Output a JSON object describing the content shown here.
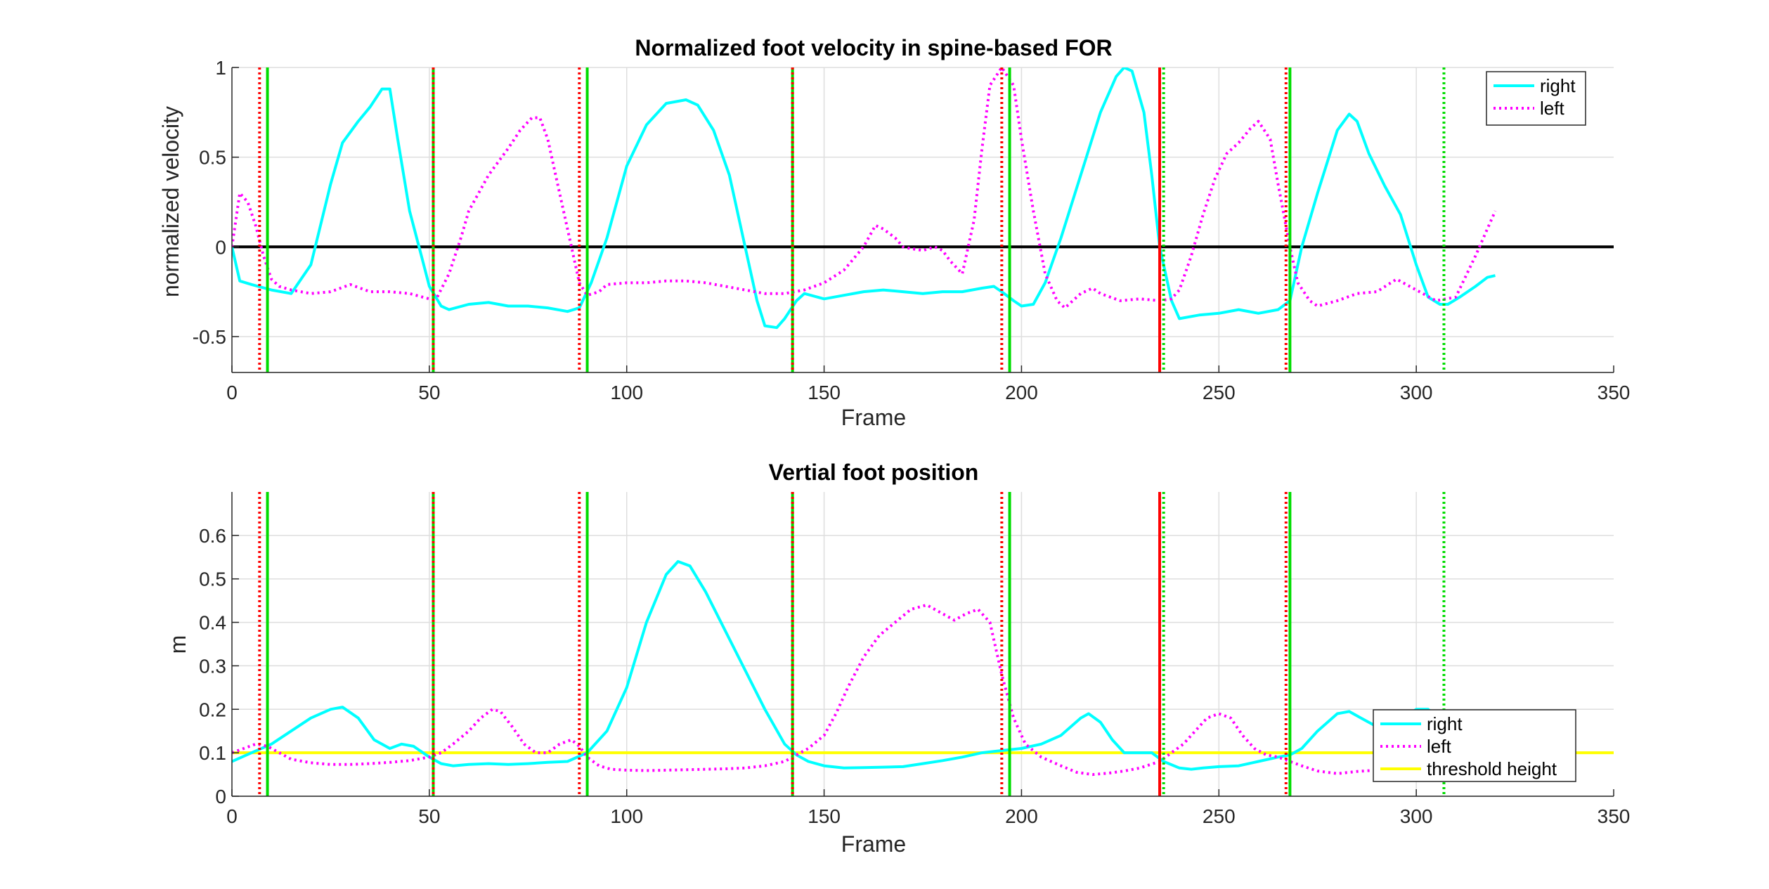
{
  "colors": {
    "right": "#00ffff",
    "left": "#ff00ff",
    "threshold": "#ffff00",
    "zero_line": "#000000",
    "green_event": "#00dd00",
    "red_event": "#ff0000"
  },
  "chart_data": [
    {
      "type": "line",
      "title": "Normalized foot velocity in spine-based FOR",
      "xlabel": "Frame",
      "ylabel": "normalized velocity",
      "xlim": [
        0,
        350
      ],
      "ylim": [
        -0.7,
        1
      ],
      "xticks": [
        0,
        50,
        100,
        150,
        200,
        250,
        300,
        350
      ],
      "yticks": [
        -0.5,
        0,
        0.5,
        1
      ],
      "ytick_labels": [
        "-0.5",
        "0",
        "0.5",
        "1"
      ],
      "grid": true,
      "legend": "top-right",
      "zero_line": 0,
      "series": [
        {
          "name": "right",
          "style": "solid",
          "x": [
            0,
            2,
            5,
            10,
            15,
            20,
            25,
            28,
            32,
            35,
            38,
            40,
            42,
            45,
            48,
            50,
            53,
            55,
            60,
            65,
            70,
            75,
            80,
            85,
            88,
            91,
            95,
            100,
            105,
            110,
            115,
            118,
            122,
            126,
            130,
            133,
            135,
            138,
            140,
            143,
            145,
            150,
            155,
            160,
            165,
            170,
            175,
            180,
            185,
            190,
            193,
            195,
            198,
            200,
            203,
            206,
            210,
            215,
            220,
            224,
            226,
            228,
            231,
            233,
            235,
            238,
            240,
            245,
            250,
            255,
            260,
            265,
            268,
            271,
            275,
            280,
            283,
            285,
            288,
            292,
            296,
            300,
            303,
            306,
            308,
            311,
            315,
            318,
            320
          ],
          "y": [
            0,
            -0.19,
            -0.21,
            -0.24,
            -0.26,
            -0.1,
            0.35,
            0.58,
            0.7,
            0.78,
            0.88,
            0.88,
            0.6,
            0.2,
            -0.05,
            -0.22,
            -0.33,
            -0.35,
            -0.32,
            -0.31,
            -0.33,
            -0.33,
            -0.34,
            -0.36,
            -0.34,
            -0.2,
            0.05,
            0.45,
            0.68,
            0.8,
            0.82,
            0.79,
            0.65,
            0.4,
            0.0,
            -0.3,
            -0.44,
            -0.45,
            -0.4,
            -0.3,
            -0.26,
            -0.29,
            -0.27,
            -0.25,
            -0.24,
            -0.25,
            -0.26,
            -0.25,
            -0.25,
            -0.23,
            -0.22,
            -0.25,
            -0.3,
            -0.33,
            -0.32,
            -0.2,
            0.05,
            0.4,
            0.75,
            0.95,
            1.0,
            0.98,
            0.75,
            0.4,
            0.0,
            -0.3,
            -0.4,
            -0.38,
            -0.37,
            -0.35,
            -0.37,
            -0.35,
            -0.3,
            0.0,
            0.3,
            0.65,
            0.74,
            0.7,
            0.52,
            0.34,
            0.18,
            -0.1,
            -0.28,
            -0.32,
            -0.32,
            -0.28,
            -0.22,
            -0.17,
            -0.16
          ]
        },
        {
          "name": "left",
          "style": "dotted",
          "x": [
            0,
            2,
            4,
            6,
            8,
            10,
            12,
            15,
            20,
            25,
            30,
            35,
            40,
            45,
            50,
            52,
            55,
            58,
            60,
            65,
            70,
            73,
            76,
            78,
            80,
            83,
            86,
            88,
            90,
            93,
            95,
            100,
            105,
            110,
            115,
            120,
            125,
            130,
            135,
            140,
            145,
            150,
            155,
            160,
            163,
            165,
            168,
            170,
            172,
            175,
            178,
            180,
            182,
            185,
            188,
            190,
            192,
            195,
            198,
            200,
            203,
            206,
            209,
            211,
            213,
            215,
            218,
            220,
            225,
            230,
            235,
            238,
            240,
            243,
            246,
            249,
            252,
            255,
            258,
            260,
            263,
            265,
            268,
            270,
            273,
            275,
            280,
            285,
            290,
            295,
            300,
            305,
            310,
            315,
            320
          ],
          "y": [
            0,
            0.3,
            0.25,
            0.12,
            -0.05,
            -0.18,
            -0.22,
            -0.24,
            -0.26,
            -0.25,
            -0.21,
            -0.25,
            -0.25,
            -0.26,
            -0.29,
            -0.28,
            -0.15,
            0.05,
            0.2,
            0.4,
            0.55,
            0.65,
            0.72,
            0.72,
            0.6,
            0.3,
            0.0,
            -0.2,
            -0.27,
            -0.25,
            -0.21,
            -0.2,
            -0.2,
            -0.19,
            -0.19,
            -0.2,
            -0.22,
            -0.24,
            -0.26,
            -0.26,
            -0.24,
            -0.2,
            -0.13,
            0.0,
            0.12,
            0.1,
            0.05,
            0.0,
            -0.01,
            -0.02,
            0.0,
            -0.02,
            -0.08,
            -0.15,
            0.15,
            0.55,
            0.9,
            1.0,
            0.9,
            0.6,
            0.2,
            -0.15,
            -0.3,
            -0.34,
            -0.3,
            -0.26,
            -0.23,
            -0.26,
            -0.3,
            -0.29,
            -0.3,
            -0.29,
            -0.24,
            -0.05,
            0.18,
            0.38,
            0.52,
            0.58,
            0.66,
            0.7,
            0.6,
            0.35,
            0.0,
            -0.2,
            -0.3,
            -0.33,
            -0.3,
            -0.26,
            -0.25,
            -0.18,
            -0.24,
            -0.3,
            -0.28,
            -0.05,
            0.2
          ]
        }
      ]
    },
    {
      "type": "line",
      "title": "Vertial foot position",
      "xlabel": "Frame",
      "ylabel": "m",
      "xlim": [
        0,
        350
      ],
      "ylim": [
        0,
        0.7
      ],
      "xticks": [
        0,
        50,
        100,
        150,
        200,
        250,
        300,
        350
      ],
      "yticks": [
        0,
        0.1,
        0.2,
        0.3,
        0.4,
        0.5,
        0.6
      ],
      "ytick_labels": [
        "0",
        "0.1",
        "0.2",
        "0.3",
        "0.4",
        "0.5",
        "0.6"
      ],
      "grid": true,
      "legend": "bottom-right",
      "series": [
        {
          "name": "right",
          "style": "solid",
          "x": [
            0,
            5,
            10,
            15,
            20,
            25,
            28,
            32,
            36,
            40,
            43,
            46,
            50,
            53,
            56,
            60,
            65,
            70,
            75,
            80,
            85,
            90,
            95,
            100,
            105,
            110,
            113,
            116,
            120,
            125,
            130,
            135,
            140,
            143,
            146,
            150,
            155,
            160,
            165,
            170,
            175,
            180,
            185,
            190,
            195,
            200,
            205,
            210,
            215,
            217,
            220,
            223,
            226,
            230,
            233,
            236,
            240,
            243,
            246,
            250,
            255,
            260,
            265,
            268,
            271,
            275,
            280,
            283,
            286,
            290,
            295,
            300,
            303,
            306,
            310,
            315,
            320
          ],
          "y": [
            0.08,
            0.1,
            0.12,
            0.15,
            0.18,
            0.2,
            0.205,
            0.18,
            0.13,
            0.11,
            0.12,
            0.115,
            0.09,
            0.075,
            0.07,
            0.073,
            0.075,
            0.073,
            0.075,
            0.078,
            0.08,
            0.1,
            0.15,
            0.25,
            0.4,
            0.51,
            0.54,
            0.53,
            0.47,
            0.38,
            0.29,
            0.2,
            0.12,
            0.095,
            0.08,
            0.07,
            0.065,
            0.066,
            0.067,
            0.068,
            0.075,
            0.082,
            0.09,
            0.1,
            0.105,
            0.11,
            0.12,
            0.14,
            0.18,
            0.19,
            0.17,
            0.13,
            0.1,
            0.1,
            0.1,
            0.08,
            0.065,
            0.062,
            0.065,
            0.068,
            0.07,
            0.08,
            0.09,
            0.095,
            0.11,
            0.15,
            0.19,
            0.195,
            0.18,
            0.16,
            0.17,
            0.2,
            0.2,
            0.18,
            0.16,
            0.14,
            0.12
          ]
        },
        {
          "name": "left",
          "style": "dotted",
          "x": [
            0,
            3,
            6,
            9,
            12,
            15,
            20,
            25,
            30,
            35,
            40,
            45,
            50,
            53,
            56,
            60,
            63,
            66,
            68,
            71,
            74,
            77,
            80,
            83,
            86,
            88,
            90,
            93,
            96,
            100,
            105,
            110,
            115,
            120,
            125,
            130,
            135,
            140,
            143,
            146,
            150,
            153,
            156,
            160,
            164,
            168,
            172,
            176,
            180,
            183,
            186,
            189,
            192,
            195,
            198,
            201,
            205,
            210,
            214,
            218,
            222,
            226,
            230,
            235,
            238,
            241,
            244,
            247,
            250,
            253,
            256,
            259,
            262,
            265,
            268,
            271,
            275,
            280,
            285,
            290,
            295,
            300,
            305,
            310,
            315,
            320
          ],
          "y": [
            0.1,
            0.11,
            0.12,
            0.115,
            0.1,
            0.085,
            0.077,
            0.073,
            0.073,
            0.075,
            0.078,
            0.082,
            0.09,
            0.1,
            0.12,
            0.15,
            0.18,
            0.2,
            0.195,
            0.16,
            0.12,
            0.1,
            0.1,
            0.12,
            0.13,
            0.115,
            0.09,
            0.07,
            0.062,
            0.06,
            0.059,
            0.06,
            0.061,
            0.062,
            0.063,
            0.065,
            0.07,
            0.08,
            0.095,
            0.11,
            0.14,
            0.19,
            0.25,
            0.32,
            0.37,
            0.4,
            0.43,
            0.44,
            0.42,
            0.405,
            0.42,
            0.43,
            0.4,
            0.28,
            0.18,
            0.12,
            0.09,
            0.07,
            0.055,
            0.05,
            0.053,
            0.058,
            0.065,
            0.08,
            0.1,
            0.12,
            0.15,
            0.18,
            0.19,
            0.18,
            0.14,
            0.11,
            0.095,
            0.09,
            0.08,
            0.07,
            0.058,
            0.052,
            0.057,
            0.06,
            0.06,
            0.062,
            0.07,
            0.08,
            0.09,
            0.1
          ]
        },
        {
          "name": "threshold height",
          "style": "solid",
          "x": [
            0,
            350
          ],
          "y": [
            0.1,
            0.1
          ]
        }
      ]
    }
  ],
  "event_lines": [
    {
      "x": 7,
      "color": "red_event",
      "style": "dotted"
    },
    {
      "x": 9,
      "color": "green_event",
      "style": "solid"
    },
    {
      "x": 51,
      "color": "green_event",
      "style": "solid"
    },
    {
      "x": 51,
      "color": "red_event",
      "style": "dotted"
    },
    {
      "x": 88,
      "color": "red_event",
      "style": "dotted"
    },
    {
      "x": 90,
      "color": "green_event",
      "style": "solid"
    },
    {
      "x": 142,
      "color": "green_event",
      "style": "solid"
    },
    {
      "x": 142,
      "color": "red_event",
      "style": "dotted"
    },
    {
      "x": 195,
      "color": "red_event",
      "style": "dotted"
    },
    {
      "x": 197,
      "color": "green_event",
      "style": "solid"
    },
    {
      "x": 235,
      "color": "red_event",
      "style": "solid"
    },
    {
      "x": 236,
      "color": "green_event",
      "style": "dotted"
    },
    {
      "x": 267,
      "color": "red_event",
      "style": "dotted"
    },
    {
      "x": 268,
      "color": "green_event",
      "style": "solid"
    },
    {
      "x": 307,
      "color": "green_event",
      "style": "dotted"
    }
  ]
}
